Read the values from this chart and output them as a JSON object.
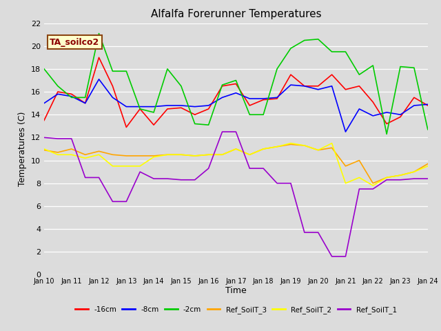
{
  "title": "Alfalfa Forerunner Temperatures",
  "xlabel": "Time",
  "ylabel": "Temperatures (C)",
  "annotation": "TA_soilco2",
  "ylim": [
    0,
    22
  ],
  "fig_bg": "#dcdcdc",
  "ax_bg": "#dcdcdc",
  "xtick_labels": [
    "Jan 10",
    "Jan 11",
    "Jan 12",
    "Jan 13",
    "Jan 14",
    "Jan 15",
    "Jan 16",
    "Jan 17",
    "Jan 18",
    "Jan 19",
    "Jan 20",
    "Jan 21",
    "Jan 22",
    "Jan 23",
    "Jan 24"
  ],
  "series": [
    {
      "label": "-16cm",
      "color": "#ff0000",
      "x": [
        0.0,
        0.5,
        1.0,
        1.5,
        2.0,
        2.5,
        3.0,
        3.5,
        4.0,
        4.5,
        5.0,
        5.5,
        6.0,
        6.5,
        7.0,
        7.5,
        8.0,
        8.5,
        9.0,
        9.5,
        10.0,
        10.5,
        11.0,
        11.5,
        12.0,
        12.5,
        13.0,
        13.5,
        14.0
      ],
      "y": [
        13.5,
        16.0,
        15.8,
        15.0,
        19.0,
        16.5,
        12.9,
        14.5,
        13.1,
        14.5,
        14.6,
        14.0,
        14.5,
        16.5,
        16.7,
        14.8,
        15.3,
        15.4,
        17.5,
        16.5,
        16.5,
        17.5,
        16.2,
        16.5,
        15.1,
        13.2,
        13.8,
        15.5,
        14.8
      ]
    },
    {
      "label": "-8cm",
      "color": "#0000ff",
      "x": [
        0.0,
        0.5,
        1.0,
        1.5,
        2.0,
        2.5,
        3.0,
        3.5,
        4.0,
        4.5,
        5.0,
        5.5,
        6.0,
        6.5,
        7.0,
        7.5,
        8.0,
        8.5,
        9.0,
        9.5,
        10.0,
        10.5,
        11.0,
        11.5,
        12.0,
        12.5,
        13.0,
        13.5,
        14.0
      ],
      "y": [
        15.0,
        15.8,
        15.6,
        15.0,
        17.1,
        15.5,
        14.7,
        14.7,
        14.7,
        14.8,
        14.8,
        14.7,
        14.8,
        15.5,
        15.9,
        15.4,
        15.4,
        15.5,
        16.6,
        16.5,
        16.2,
        16.5,
        12.5,
        14.5,
        13.9,
        14.2,
        14.0,
        14.8,
        14.9
      ]
    },
    {
      "label": "-2cm",
      "color": "#00cc00",
      "x": [
        0.0,
        0.5,
        1.0,
        1.5,
        2.0,
        2.5,
        3.0,
        3.5,
        4.0,
        4.5,
        5.0,
        5.5,
        6.0,
        6.5,
        7.0,
        7.5,
        8.0,
        8.5,
        9.0,
        9.5,
        10.0,
        10.5,
        11.0,
        11.5,
        12.0,
        12.5,
        13.0,
        13.5,
        14.0
      ],
      "y": [
        18.0,
        16.5,
        15.5,
        15.5,
        21.1,
        17.8,
        17.8,
        14.5,
        14.2,
        18.0,
        16.5,
        13.2,
        13.1,
        16.6,
        17.0,
        14.0,
        14.0,
        18.0,
        19.8,
        20.5,
        20.6,
        19.5,
        19.5,
        17.5,
        18.3,
        12.3,
        18.2,
        18.1,
        12.7
      ]
    },
    {
      "label": "Ref_SoilT_3",
      "color": "#ffa500",
      "x": [
        0.0,
        0.5,
        1.0,
        1.5,
        2.0,
        2.5,
        3.0,
        3.5,
        4.0,
        4.5,
        5.0,
        5.5,
        6.0,
        6.5,
        7.0,
        7.5,
        8.0,
        8.5,
        9.0,
        9.5,
        10.0,
        10.5,
        11.0,
        11.5,
        12.0,
        12.5,
        13.0,
        13.5,
        14.0
      ],
      "y": [
        10.9,
        10.7,
        11.0,
        10.5,
        10.8,
        10.5,
        10.4,
        10.4,
        10.4,
        10.5,
        10.5,
        10.4,
        10.5,
        10.5,
        11.0,
        10.5,
        11.0,
        11.2,
        11.4,
        11.3,
        10.9,
        11.1,
        9.5,
        10.0,
        8.0,
        8.5,
        8.7,
        9.0,
        9.7
      ]
    },
    {
      "label": "Ref_SoilT_2",
      "color": "#ffff00",
      "x": [
        0.0,
        0.5,
        1.0,
        1.5,
        2.0,
        2.5,
        3.0,
        3.5,
        4.0,
        4.5,
        5.0,
        5.5,
        6.0,
        6.5,
        7.0,
        7.5,
        8.0,
        8.5,
        9.0,
        9.5,
        10.0,
        10.5,
        11.0,
        11.5,
        12.0,
        12.5,
        13.0,
        13.5,
        14.0
      ],
      "y": [
        11.0,
        10.5,
        10.5,
        10.2,
        10.5,
        9.5,
        9.5,
        9.5,
        10.3,
        10.5,
        10.5,
        10.4,
        10.5,
        10.5,
        11.0,
        10.5,
        11.0,
        11.2,
        11.5,
        11.3,
        10.9,
        11.5,
        8.0,
        8.5,
        7.8,
        8.5,
        8.7,
        9.0,
        9.5
      ]
    },
    {
      "label": "Ref_SoilT_1",
      "color": "#9900cc",
      "x": [
        0.0,
        0.5,
        1.0,
        1.5,
        2.0,
        2.5,
        3.0,
        3.5,
        4.0,
        4.5,
        5.0,
        5.5,
        6.0,
        6.5,
        7.0,
        7.5,
        8.0,
        8.5,
        9.0,
        9.5,
        10.0,
        10.5,
        11.0,
        11.5,
        12.0,
        12.5,
        13.0,
        13.5,
        14.0
      ],
      "y": [
        12.0,
        11.9,
        11.9,
        8.5,
        8.5,
        6.4,
        6.4,
        9.0,
        8.4,
        8.4,
        8.3,
        8.3,
        9.3,
        12.5,
        12.5,
        9.3,
        9.3,
        8.0,
        8.0,
        3.7,
        3.7,
        1.6,
        1.6,
        7.5,
        7.5,
        8.3,
        8.3,
        8.4,
        8.4
      ]
    }
  ]
}
